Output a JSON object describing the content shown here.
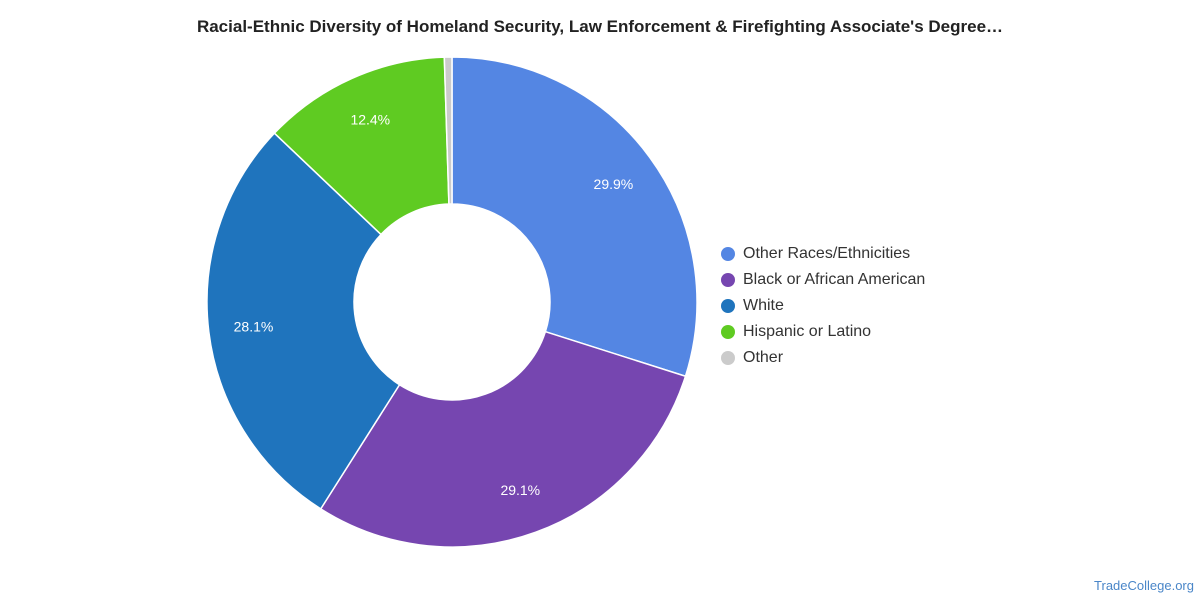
{
  "chart_data": {
    "type": "pie",
    "variant": "donut",
    "title": "Racial-Ethnic Diversity of Homeland Security, Law Enforcement & Firefighting Associate's Degree…",
    "legend_position": "right",
    "slices": [
      {
        "name": "Other Races/Ethnicities",
        "value": 29.9,
        "label": "29.9%",
        "color": "#5486e3"
      },
      {
        "name": "Black or African American",
        "value": 29.1,
        "label": "29.1%",
        "color": "#7646b0"
      },
      {
        "name": "White",
        "value": 28.1,
        "label": "28.1%",
        "color": "#1f74bd"
      },
      {
        "name": "Hispanic or Latino",
        "value": 12.4,
        "label": "12.4%",
        "color": "#5fcb22"
      },
      {
        "name": "Other",
        "value": 0.5,
        "label": "",
        "color": "#cbcbcb"
      }
    ]
  },
  "source": "TradeCollege.org"
}
